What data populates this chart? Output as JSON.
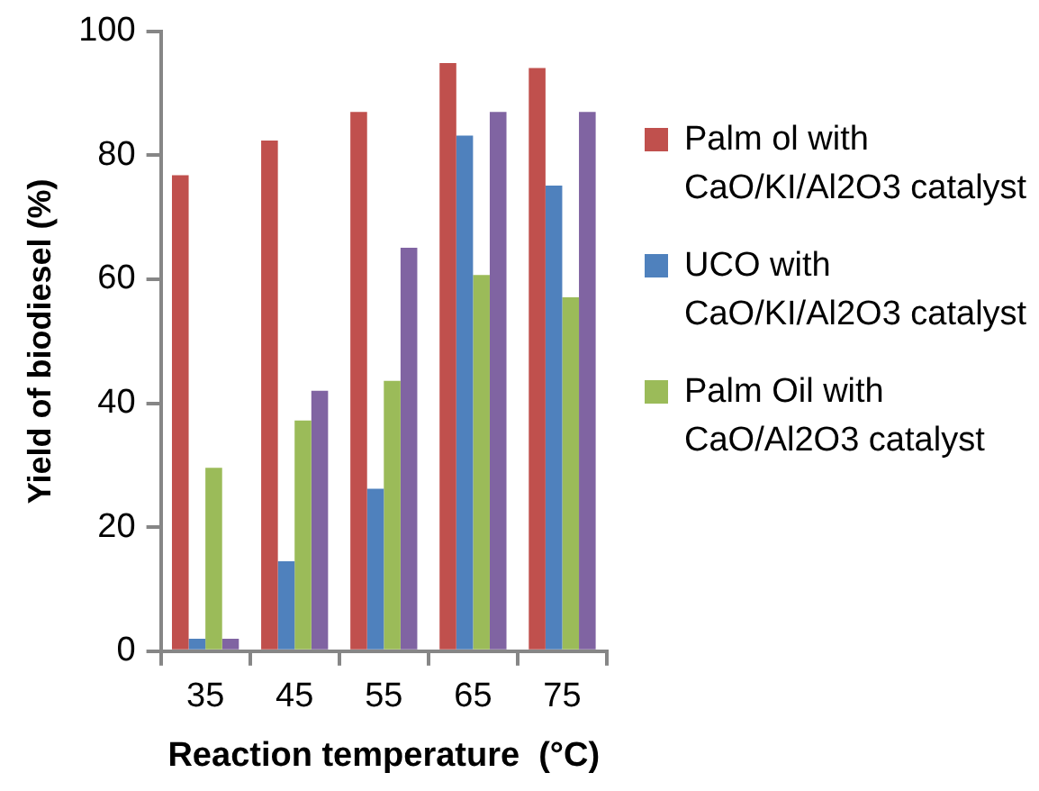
{
  "chart_data": {
    "type": "bar",
    "xlabel": "Reaction temperature  (°C)",
    "ylabel": "Yield of biodiesel (%)",
    "categories": [
      "35",
      "45",
      "55",
      "65",
      "75"
    ],
    "series": [
      {
        "name": "Palm ol with CaO/KI/Al2O3 catalyst",
        "color": "#c0504d",
        "values": [
          76.8,
          82.4,
          87,
          94.9,
          94.1
        ]
      },
      {
        "name": "UCO with CaO/KI/Al2O3 catalyst",
        "color": "#4f81bd",
        "values": [
          2,
          14.5,
          26.2,
          83.2,
          75.1
        ]
      },
      {
        "name": "Palm Oil with CaO/Al2O3 catalyst",
        "color": "#9bbb59",
        "values": [
          29.6,
          37.2,
          43.6,
          60.7,
          57.1
        ]
      },
      {
        "color": "#8064a2",
        "values": [
          2,
          42,
          65.1,
          87,
          87
        ]
      }
    ],
    "ylim": [
      0,
      100
    ],
    "yticks": [
      0,
      20,
      40,
      60,
      80,
      100
    ],
    "grid": false,
    "legend": "right"
  }
}
